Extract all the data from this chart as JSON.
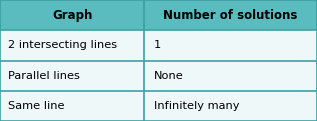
{
  "header": [
    "Graph",
    "Number of solutions"
  ],
  "rows": [
    [
      "2 intersecting lines",
      "1"
    ],
    [
      "Parallel lines",
      "None"
    ],
    [
      "Same line",
      "Infinitely many"
    ]
  ],
  "header_bg": "#5bbcbf",
  "row_bg": "#eef8f8",
  "border_color": "#3aa0a4",
  "header_text_color": "#000000",
  "row_text_color": "#000000",
  "col_split": 0.455,
  "fig_width": 3.17,
  "fig_height": 1.21,
  "dpi": 100,
  "header_fontsize": 8.5,
  "row_fontsize": 8.2
}
